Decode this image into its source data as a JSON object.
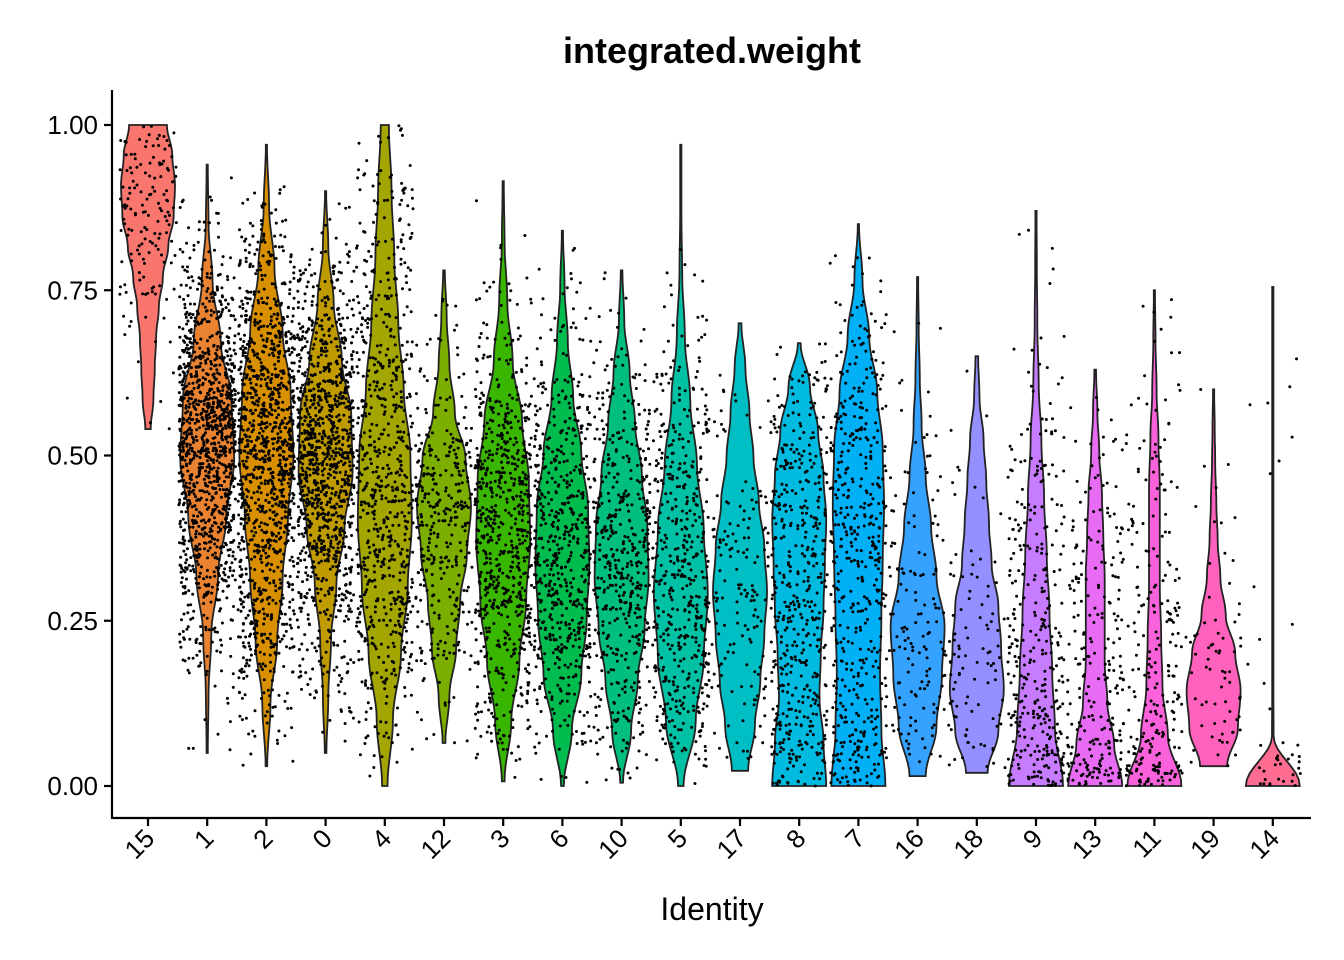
{
  "chart_data": {
    "type": "violin",
    "title": "integrated.weight",
    "xlabel": "Identity",
    "ylabel": "",
    "ylim": [
      -0.05,
      1.05
    ],
    "yticks": [
      0,
      0.25,
      0.5,
      0.75,
      1.0
    ],
    "ytick_labels": [
      "0.00",
      "0.25",
      "0.50",
      "0.75",
      "1.00"
    ],
    "grid": false,
    "legend": "none",
    "categories": [
      "15",
      "1",
      "2",
      "0",
      "4",
      "12",
      "3",
      "6",
      "10",
      "5",
      "17",
      "8",
      "7",
      "16",
      "18",
      "9",
      "13",
      "11",
      "19",
      "14"
    ],
    "series": [
      {
        "name": "15",
        "color": "#F8766D",
        "min": 0.54,
        "max": 1.0,
        "density": [
          0.1,
          0.2,
          0.25,
          0.3,
          0.4,
          0.55,
          0.75,
          0.95,
          1,
          0.9,
          0.7
        ],
        "n_points": 150
      },
      {
        "name": "1",
        "color": "#EA8331",
        "min": 0.05,
        "max": 0.94,
        "density": [
          0.02,
          0.05,
          0.15,
          0.4,
          0.7,
          1,
          0.9,
          0.5,
          0.2,
          0.05,
          0.02
        ],
        "n_points": 1200
      },
      {
        "name": "2",
        "color": "#D89000",
        "min": 0.03,
        "max": 0.97,
        "density": [
          0.03,
          0.15,
          0.4,
          0.6,
          0.8,
          1,
          0.9,
          0.6,
          0.3,
          0.1,
          0.02
        ],
        "n_points": 1200
      },
      {
        "name": "0",
        "color": "#C09B00",
        "min": 0.05,
        "max": 0.9,
        "density": [
          0.03,
          0.1,
          0.2,
          0.4,
          0.7,
          1,
          0.95,
          0.6,
          0.3,
          0.1,
          0.02
        ],
        "n_points": 1100
      },
      {
        "name": "4",
        "color": "#A3A500",
        "min": 0.0,
        "max": 1.0,
        "density": [
          0.1,
          0.3,
          0.6,
          0.85,
          1,
          0.95,
          0.7,
          0.5,
          0.35,
          0.25,
          0.15
        ],
        "n_points": 700
      },
      {
        "name": "12",
        "color": "#7CAE00",
        "min": 0.065,
        "max": 0.78,
        "density": [
          0.05,
          0.2,
          0.45,
          0.6,
          0.85,
          1,
          0.8,
          0.4,
          0.2,
          0.1,
          0.03
        ],
        "n_points": 350
      },
      {
        "name": "3",
        "color": "#39B600",
        "min": 0.007,
        "max": 0.915,
        "density": [
          0.05,
          0.3,
          0.6,
          0.85,
          1,
          0.95,
          0.7,
          0.35,
          0.15,
          0.05,
          0.02
        ],
        "n_points": 700
      },
      {
        "name": "6",
        "color": "#00BB4E",
        "min": 0.0,
        "max": 0.84,
        "density": [
          0.05,
          0.35,
          0.7,
          0.9,
          1,
          0.95,
          0.7,
          0.4,
          0.2,
          0.08,
          0.02
        ],
        "n_points": 600
      },
      {
        "name": "10",
        "color": "#00BF7D",
        "min": 0.005,
        "max": 0.78,
        "density": [
          0.05,
          0.35,
          0.6,
          0.85,
          1,
          0.95,
          0.75,
          0.5,
          0.3,
          0.1,
          0.03
        ],
        "n_points": 500
      },
      {
        "name": "5",
        "color": "#00C1A3",
        "min": 0.0,
        "max": 0.97,
        "density": [
          0.1,
          0.55,
          0.85,
          1,
          0.85,
          0.6,
          0.35,
          0.15,
          0.05,
          0.02,
          0.01
        ],
        "n_points": 500
      },
      {
        "name": "17",
        "color": "#00BFC4",
        "min": 0.023,
        "max": 0.7,
        "density": [
          0.3,
          0.55,
          0.75,
          0.9,
          1,
          0.9,
          0.7,
          0.5,
          0.35,
          0.2,
          0.05
        ],
        "n_points": 150
      },
      {
        "name": "8",
        "color": "#00BAE0",
        "min": 0.0,
        "max": 0.67,
        "density": [
          1,
          0.9,
          0.75,
          0.8,
          0.9,
          0.95,
          1,
          0.9,
          0.7,
          0.4,
          0.05
        ],
        "n_points": 500
      },
      {
        "name": "7",
        "color": "#00B0F6",
        "min": 0.0,
        "max": 0.85,
        "density": [
          1,
          0.85,
          0.8,
          0.85,
          0.9,
          0.95,
          0.9,
          0.7,
          0.4,
          0.15,
          0.02
        ],
        "n_points": 500
      },
      {
        "name": "16",
        "color": "#35A2FF",
        "min": 0.015,
        "max": 0.77,
        "density": [
          0.3,
          0.7,
          0.9,
          1,
          0.7,
          0.5,
          0.3,
          0.15,
          0.08,
          0.04,
          0.02
        ],
        "n_points": 150
      },
      {
        "name": "18",
        "color": "#9590FF",
        "min": 0.02,
        "max": 0.65,
        "density": [
          0.4,
          0.8,
          1,
          0.9,
          0.8,
          0.55,
          0.45,
          0.35,
          0.25,
          0.1,
          0.05
        ],
        "n_points": 100
      },
      {
        "name": "9",
        "color": "#C77CFF",
        "min": 0.0,
        "max": 0.87,
        "density": [
          1,
          0.7,
          0.6,
          0.5,
          0.4,
          0.3,
          0.2,
          0.1,
          0.05,
          0.03,
          0.02
        ],
        "n_points": 350
      },
      {
        "name": "13",
        "color": "#E76BF3",
        "min": 0.0,
        "max": 0.63,
        "density": [
          1,
          0.7,
          0.45,
          0.35,
          0.35,
          0.35,
          0.3,
          0.25,
          0.15,
          0.08,
          0.03
        ],
        "n_points": 250
      },
      {
        "name": "11",
        "color": "#FA62DB",
        "min": 0.0,
        "max": 0.75,
        "density": [
          1,
          0.5,
          0.3,
          0.25,
          0.2,
          0.2,
          0.2,
          0.15,
          0.08,
          0.04,
          0.02
        ],
        "n_points": 250
      },
      {
        "name": "19",
        "color": "#FF62BC",
        "min": 0.03,
        "max": 0.6,
        "density": [
          0.5,
          0.9,
          1,
          0.8,
          0.45,
          0.25,
          0.15,
          0.1,
          0.06,
          0.04,
          0.02
        ],
        "n_points": 70
      },
      {
        "name": "14",
        "color": "#FF6C91",
        "min": 0.0,
        "max": 0.755,
        "density": [
          1,
          0.03,
          0.02,
          0.02,
          0.02,
          0.02,
          0.02,
          0.02,
          0.02,
          0.02,
          0.02
        ],
        "n_points": 40
      }
    ]
  }
}
